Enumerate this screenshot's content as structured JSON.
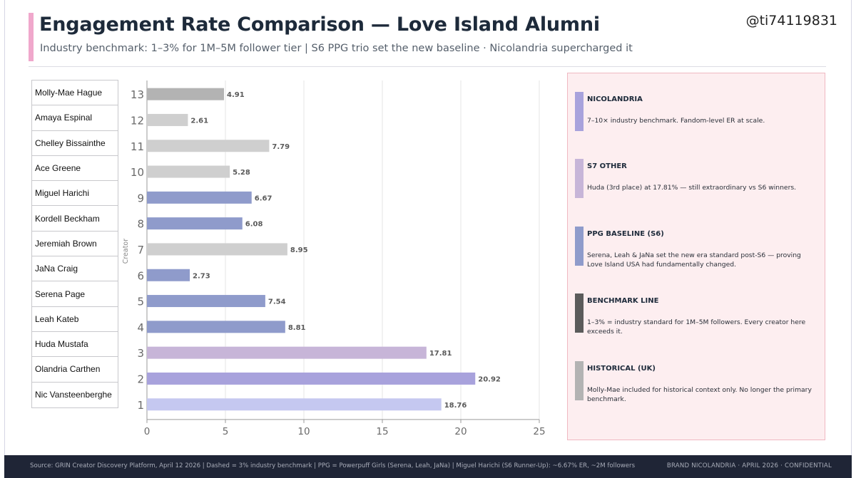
{
  "header": {
    "title": "Engagement Rate Comparison — Love Island Alumni",
    "subtitle": "Industry benchmark: 1–3% for 1M–5M follower tier | S6 PPG trio set the new baseline · Nicolandria supercharged it",
    "handle": "@ti74119831",
    "accent_color": "#f0a8cc"
  },
  "chart_data": {
    "type": "bar",
    "orientation": "horizontal",
    "title": "",
    "xlabel": "",
    "ylabel": "Creator",
    "xlim": [
      0,
      25
    ],
    "x_ticks": [
      "0",
      "5",
      "10",
      "15",
      "20",
      "25"
    ],
    "grid": true,
    "categories": [
      "13",
      "12",
      "11",
      "10",
      "9",
      "8",
      "7",
      "6",
      "5",
      "4",
      "3",
      "2",
      "1"
    ],
    "creators": [
      "Molly-Mae Hague",
      "Amaya Espinal",
      "Chelley Bissainthe",
      "Ace Greene",
      "Miguel Harichi",
      "Kordell Beckham",
      "Jeremiah Brown",
      "JaNa Craig",
      "Serena Page",
      "Leah Kateb",
      "Huda Mustafa",
      "Olandria Carthen",
      "Nic Vansteenberghe"
    ],
    "values": [
      4.91,
      2.61,
      7.79,
      5.28,
      6.67,
      6.08,
      8.95,
      2.73,
      7.54,
      8.81,
      17.81,
      20.92,
      18.76
    ],
    "value_labels": [
      "4.91",
      "2.61",
      "7.79",
      "5.28",
      "6.67",
      "6.08",
      "8.95",
      "2.73",
      "7.54",
      "8.81",
      "17.81",
      "20.92",
      "18.76"
    ],
    "colors": [
      "#b3b3b3",
      "#cfcfcf",
      "#cfcfcf",
      "#cfcfcf",
      "#8f9bcb",
      "#8f9bcb",
      "#cfcfcf",
      "#8f9bcb",
      "#8f9bcb",
      "#8f9bcb",
      "#c7b5d8",
      "#a8a2dc",
      "#c5c8f0"
    ]
  },
  "legend": {
    "items": [
      {
        "title": "NICOLANDRIA",
        "desc": "7–10× industry benchmark. Fandom-level ER at scale.",
        "color": "#a8a2dc"
      },
      {
        "title": "S7 OTHER",
        "desc": "Huda (3rd place) at 17.81% — still extraordinary vs S6 winners.",
        "color": "#c7b5d8"
      },
      {
        "title": "PPG BASELINE (S6)",
        "desc": "Serena, Leah & JaNa set the new era standard post-S6 — proving Love Island USA had fundamentally changed.",
        "color": "#8f9bcb"
      },
      {
        "title": "BENCHMARK LINE",
        "desc": "1–3% = industry standard for 1M–5M followers. Every creator here exceeds it.",
        "color": "#5b5b5b"
      },
      {
        "title": "HISTORICAL (UK)",
        "desc": "Molly-Mae included for historical context only. No longer the primary benchmark.",
        "color": "#b3b3b3"
      }
    ]
  },
  "footer": {
    "source": "Source: GRIN Creator Discovery Platform, April 12 2026 | Dashed = 3% industry benchmark | PPG = Powerpuff Girls (Serena, Leah, JaNa) | Miguel Harichi (S6 Runner-Up): ~6.67% ER, ~2M followers",
    "right": "BRAND NICOLANDRIA · APRIL 2026 · CONFIDENTIAL"
  }
}
